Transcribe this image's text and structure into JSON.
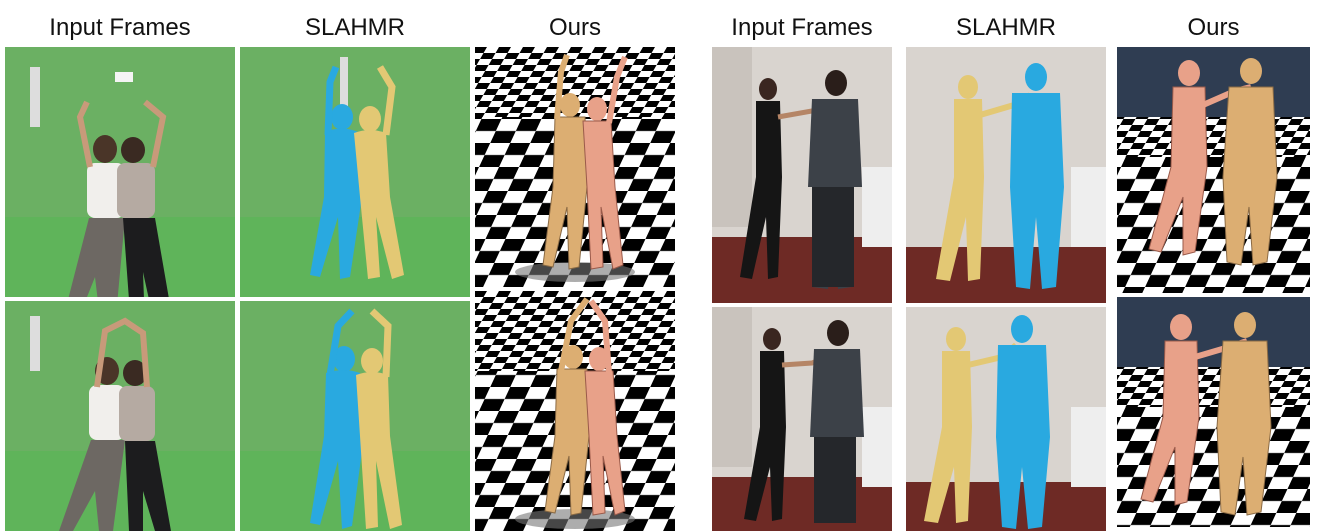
{
  "figure": {
    "left_group": {
      "headers": [
        "Input Frames",
        "SLAHMR",
        "Ours"
      ]
    },
    "right_group": {
      "headers": [
        "Input Frames",
        "SLAHMR",
        "Ours"
      ]
    }
  },
  "colors": {
    "green_screen": "#5fae5a",
    "green_floor": "#67b85f",
    "slahmr_blue": "#29a9e0",
    "slahmr_yellow": "#e3c874",
    "ours_orange": "#dcae72",
    "ours_pink": "#e8a189",
    "room_wall": "#d9d4cf",
    "room_floor": "#6e2a25",
    "sky_dark": "#2f3d52"
  }
}
